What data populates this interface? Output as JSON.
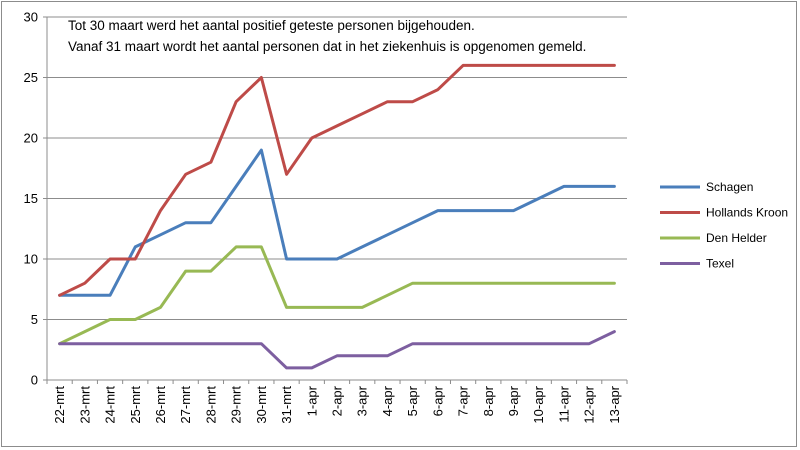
{
  "chart_data": {
    "type": "line",
    "categories": [
      "22-mrt",
      "23-mrt",
      "24-mrt",
      "25-mrt",
      "26-mrt",
      "27-mrt",
      "28-mrt",
      "29-mrt",
      "30-mrt",
      "31-mrt",
      "1-apr",
      "2-apr",
      "3-apr",
      "4-apr",
      "5-apr",
      "6-apr",
      "7-apr",
      "8-apr",
      "9-apr",
      "10-apr",
      "11-apr",
      "12-apr",
      "13-apr"
    ],
    "series": [
      {
        "name": "Schagen",
        "color": "#4a7ebb",
        "values": [
          7,
          7,
          7,
          11,
          12,
          13,
          13,
          16,
          19,
          10,
          10,
          10,
          11,
          12,
          13,
          14,
          14,
          14,
          14,
          15,
          16,
          16,
          16
        ]
      },
      {
        "name": "Hollands Kroon",
        "color": "#be4b48",
        "values": [
          7,
          8,
          10,
          10,
          14,
          17,
          18,
          23,
          25,
          17,
          20,
          21,
          22,
          23,
          23,
          24,
          26,
          26,
          26,
          26,
          26,
          26,
          26
        ]
      },
      {
        "name": "Den Helder",
        "color": "#98b954",
        "values": [
          3,
          4,
          5,
          5,
          6,
          9,
          9,
          11,
          11,
          6,
          6,
          6,
          6,
          7,
          8,
          8,
          8,
          8,
          8,
          8,
          8,
          8,
          8
        ]
      },
      {
        "name": "Texel",
        "color": "#7d5fa0",
        "values": [
          3,
          3,
          3,
          3,
          3,
          3,
          3,
          3,
          3,
          1,
          1,
          2,
          2,
          2,
          3,
          3,
          3,
          3,
          3,
          3,
          3,
          3,
          4
        ]
      }
    ],
    "ylim": [
      0,
      30
    ],
    "yticks": [
      0,
      5,
      10,
      15,
      20,
      25,
      30
    ],
    "grid": true,
    "legend_position": "right",
    "annotations": [
      "Tot 30 maart werd het aantal positief geteste personen bijgehouden.",
      "Vanaf 31 maart wordt het aantal personen dat in het ziekenhuis is opgenomen gemeld."
    ]
  }
}
